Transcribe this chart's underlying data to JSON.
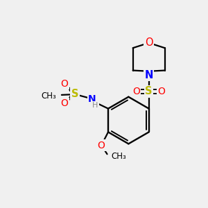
{
  "background_color": "#f0f0f0",
  "atom_colors": {
    "C": "#000000",
    "N": "#0000ff",
    "O": "#ff0000",
    "S": "#bbbb00",
    "H": "#888888"
  },
  "bond_color": "#000000",
  "figsize": [
    3.0,
    3.0
  ],
  "dpi": 100
}
